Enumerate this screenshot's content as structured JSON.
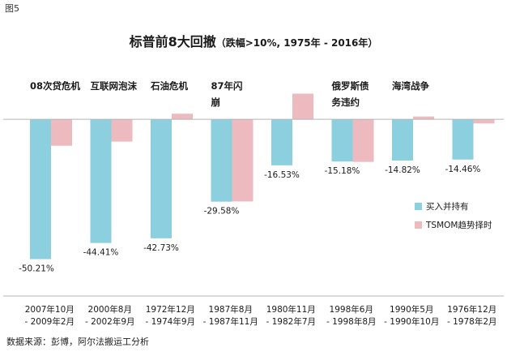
{
  "figure_label": "图5",
  "source": "数据来源：彭博，阿尔法搬运工分析",
  "chart_data": {
    "type": "bar",
    "title": "标普前8大回撤",
    "subtitle": "（跌幅>10%, 1975年 - 2016年）",
    "categories": [
      {
        "event": [
          "08次贷危机"
        ],
        "period": [
          "2007年10月",
          "- 2009年2月"
        ]
      },
      {
        "event": [
          "互联网泡沫"
        ],
        "period": [
          "2000年8月",
          "- 2002年9月"
        ]
      },
      {
        "event": [
          "石油危机"
        ],
        "period": [
          "1972年12月",
          "- 1974年9月"
        ]
      },
      {
        "event": [
          "87年闪",
          "崩"
        ],
        "period": [
          "1987年8月",
          "- 1987年11月"
        ]
      },
      {
        "event": [],
        "period": [
          "1980年11月",
          "- 1982年7月"
        ]
      },
      {
        "event": [
          "俄罗斯债",
          "务违约"
        ],
        "period": [
          "1998年6月",
          "- 1998年8月"
        ]
      },
      {
        "event": [
          "海湾战争"
        ],
        "period": [
          "1990年5月",
          "- 1990年10月"
        ]
      },
      {
        "event": [],
        "period": [
          "1976年12月",
          "- 1978年2月"
        ]
      }
    ],
    "series": [
      {
        "name": "买入并持有",
        "color": "#8ccfdf",
        "values": [
          -50.21,
          -44.41,
          -42.73,
          -29.58,
          -16.53,
          -15.18,
          -14.82,
          -14.46
        ],
        "labels": [
          "-50.21%",
          "-44.41%",
          "-42.73%",
          "-29.58%",
          "-16.53%",
          "-15.18%",
          "-14.82%",
          "-14.46%"
        ]
      },
      {
        "name": "TSMOM趋势择时",
        "color": "#edbabf",
        "values": [
          -9.5,
          -8.0,
          2.0,
          -29.5,
          9.2,
          -15.3,
          1.0,
          -1.5
        ]
      }
    ],
    "ylim": [
      -55,
      14
    ],
    "grid": false,
    "legend": "right"
  }
}
